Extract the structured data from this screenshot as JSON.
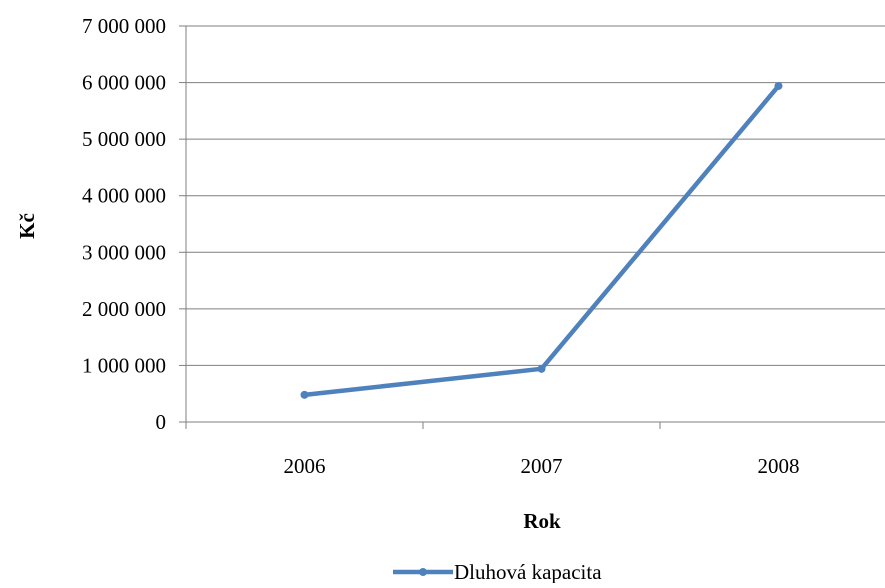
{
  "chart_data": {
    "type": "line",
    "x": [
      "2006",
      "2007",
      "2008"
    ],
    "series": [
      {
        "name": "Dluhová kapacita",
        "values": [
          480000,
          940000,
          5940000
        ],
        "color": "#4F81BD"
      }
    ],
    "xlabel": "Rok",
    "ylabel": "Kč",
    "ylim": [
      0,
      7000000
    ],
    "yticks": [
      "0",
      "1 000 000",
      "2 000 000",
      "3 000 000",
      "4 000 000",
      "5 000 000",
      "6 000 000",
      "7 000 000"
    ],
    "grid": "horizontal",
    "legend": "bottom"
  }
}
